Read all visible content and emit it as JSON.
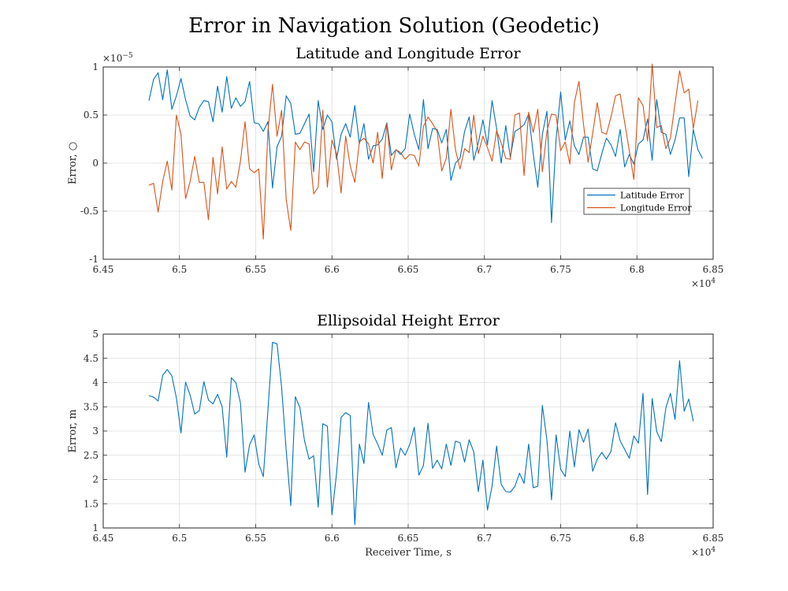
{
  "figure": {
    "title": "Error in Navigation Solution (Geodetic)"
  },
  "chart_data": [
    {
      "type": "line",
      "title": "Latitude and Longitude Error",
      "xlabel": "",
      "ylabel": "Error, ○",
      "xlim": [
        64500,
        68500
      ],
      "ylim": [
        -1e-05,
        1e-05
      ],
      "x_ticks": [
        64500,
        65000,
        65500,
        66000,
        66500,
        67000,
        67500,
        68000,
        68500
      ],
      "x_tick_labels": [
        "6.45",
        "6.5",
        "6.55",
        "6.6",
        "6.65",
        "6.7",
        "6.75",
        "6.8",
        "6.85"
      ],
      "x_exponent_label": "×10",
      "x_exponent_power": "4",
      "y_ticks": [
        -1e-05,
        -5e-06,
        0,
        5e-06,
        1e-05
      ],
      "y_tick_labels": [
        "-1",
        "-0.5",
        "0",
        "0.5",
        "1"
      ],
      "y_exponent_label": "×10",
      "y_exponent_power": "−5",
      "grid": true,
      "legend_position": "right",
      "x_start": 64800,
      "x_step": 30,
      "series": [
        {
          "name": "Latitude Error",
          "color": "#0072BD",
          "scale": 1e-05,
          "values": [
            0.65,
            0.87,
            0.94,
            0.66,
            0.97,
            0.56,
            0.7,
            0.88,
            0.66,
            0.49,
            0.45,
            0.58,
            0.65,
            0.64,
            0.43,
            0.8,
            0.53,
            0.9,
            0.57,
            0.68,
            0.59,
            0.64,
            0.85,
            0.42,
            0.41,
            0.33,
            0.43,
            -0.26,
            0.17,
            0.28,
            0.7,
            0.62,
            0.3,
            0.31,
            0.41,
            0.51,
            -0.09,
            0.65,
            0.35,
            0.5,
            0.43,
            0.04,
            0.3,
            0.41,
            0.27,
            0.6,
            0.2,
            0.41,
            0.04,
            0.18,
            0.19,
            0.25,
            0.42,
            0.08,
            0.14,
            0.09,
            0.15,
            0.51,
            0.3,
            0.14,
            0.66,
            0.15,
            0.36,
            0.35,
            0.21,
            0.35,
            -0.18,
            0.0,
            0.05,
            0.33,
            0.48,
            0.03,
            0.21,
            0.45,
            0.19,
            0.65,
            0.36,
            0.0,
            0.39,
            0.06,
            0.33,
            0.36,
            0.4,
            0.51,
            0.1,
            -0.25,
            0.3,
            0.54,
            -0.62,
            0.25,
            0.74,
            0.24,
            0.44,
            0.18,
            0.09,
            0.27,
            0.27,
            -0.06,
            -0.08,
            0.1,
            0.26,
            0.19,
            0.07,
            0.35,
            -0.04,
            0.09,
            -0.01,
            0.2,
            0.24,
            0.46,
            0.03,
            0.66,
            0.32,
            0.3,
            0.09,
            0.24,
            0.47,
            0.47,
            -0.14,
            0.35,
            0.14,
            0.05
          ]
        },
        {
          "name": "Longitude Error",
          "color": "#D95319",
          "scale": 1e-05,
          "values": [
            -0.23,
            -0.21,
            -0.51,
            -0.19,
            0.02,
            -0.28,
            0.5,
            0.3,
            -0.37,
            -0.19,
            0.07,
            -0.2,
            -0.2,
            -0.59,
            0.06,
            -0.32,
            0.17,
            -0.27,
            -0.19,
            -0.25,
            0.02,
            0.43,
            -0.06,
            -0.1,
            -0.06,
            -0.79,
            0.33,
            0.82,
            0.28,
            0.55,
            -0.38,
            -0.7,
            0.22,
            0.14,
            0.22,
            0.2,
            -0.32,
            -0.25,
            0.55,
            -0.25,
            0.24,
            0.1,
            -0.31,
            0.28,
            -0.03,
            -0.2,
            0.22,
            0.26,
            0.2,
            0.0,
            0.32,
            -0.16,
            0.41,
            -0.07,
            0.14,
            0.11,
            0.04,
            0.09,
            0.08,
            -0.03,
            0.38,
            0.48,
            0.41,
            0.33,
            -0.08,
            0.05,
            0.56,
            0.14,
            -0.06,
            0.15,
            0.11,
            0.5,
            0.1,
            0.28,
            0.16,
            0.02,
            0.34,
            0.21,
            0.05,
            0.04,
            0.5,
            0.52,
            -0.13,
            0.53,
            0.32,
            0.56,
            -0.09,
            0.33,
            0.51,
            0.5,
            0.13,
            0.22,
            -0.01,
            0.63,
            0.85,
            0.4,
            0.01,
            0.31,
            0.63,
            0.32,
            0.3,
            0.48,
            0.7,
            0.72,
            0.42,
            0.13,
            -0.17,
            0.68,
            0.6,
            0.23,
            1.03,
            0.37,
            0.39,
            0.15,
            0.26,
            0.62,
            0.96,
            0.73,
            0.77,
            0.36,
            0.65
          ]
        }
      ]
    },
    {
      "type": "line",
      "title": "Ellipsoidal Height Error",
      "xlabel": "Receiver Time, s",
      "ylabel": "Error, m",
      "xlim": [
        64500,
        68500
      ],
      "ylim": [
        1,
        5
      ],
      "x_ticks": [
        64500,
        65000,
        65500,
        66000,
        66500,
        67000,
        67500,
        68000,
        68500
      ],
      "x_tick_labels": [
        "6.45",
        "6.5",
        "6.55",
        "6.6",
        "6.65",
        "6.7",
        "6.75",
        "6.8",
        "6.85"
      ],
      "x_exponent_label": "×10",
      "x_exponent_power": "4",
      "y_ticks": [
        1,
        1.5,
        2,
        2.5,
        3,
        3.5,
        4,
        4.5,
        5
      ],
      "y_tick_labels": [
        "1",
        "1.5",
        "2",
        "2.5",
        "3",
        "3.5",
        "4",
        "4.5",
        "5"
      ],
      "grid": true,
      "x_start": 64800,
      "x_step": 30,
      "series": [
        {
          "color": "#0072BD",
          "scale": 1,
          "values": [
            3.73,
            3.7,
            3.62,
            4.15,
            4.27,
            4.14,
            3.68,
            2.96,
            4.01,
            3.74,
            3.35,
            3.42,
            4.02,
            3.64,
            3.56,
            3.76,
            3.5,
            2.46,
            4.1,
            4.0,
            3.58,
            2.15,
            2.72,
            2.92,
            2.32,
            2.06,
            3.42,
            4.83,
            4.8,
            3.9,
            2.6,
            1.46,
            3.71,
            3.48,
            2.8,
            2.42,
            2.49,
            1.43,
            3.15,
            3.1,
            1.27,
            2.12,
            3.28,
            3.38,
            3.32,
            1.07,
            2.73,
            2.33,
            3.59,
            2.93,
            2.73,
            2.5,
            3.02,
            3.07,
            2.24,
            2.65,
            2.5,
            2.72,
            3.08,
            2.09,
            2.29,
            3.16,
            2.23,
            2.4,
            2.22,
            2.73,
            2.29,
            2.79,
            2.76,
            2.36,
            2.82,
            2.57,
            1.75,
            2.4,
            1.37,
            1.86,
            2.69,
            1.9,
            1.75,
            1.74,
            1.86,
            2.13,
            1.92,
            2.73,
            1.83,
            1.86,
            3.53,
            2.81,
            1.58,
            2.92,
            2.21,
            2.06,
            3.0,
            2.26,
            3.03,
            2.77,
            3.04,
            2.17,
            2.42,
            2.56,
            2.42,
            2.58,
            3.17,
            2.8,
            2.62,
            2.44,
            2.9,
            2.75,
            3.78,
            1.69,
            3.67,
            2.99,
            2.78,
            3.48,
            3.78,
            3.24,
            4.45,
            3.41,
            3.66,
            3.2
          ]
        }
      ]
    }
  ]
}
